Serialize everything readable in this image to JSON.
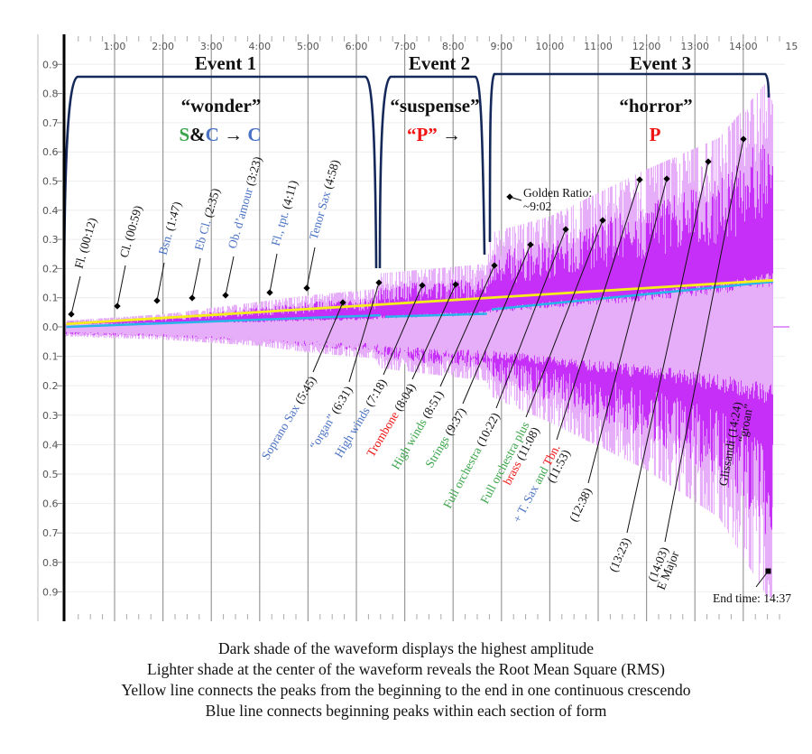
{
  "chart_data": {
    "type": "area",
    "title": "",
    "xlabel": "",
    "ylabel": "",
    "xlim_minutes": [
      0,
      15
    ],
    "ylim": [
      -0.95,
      0.95
    ],
    "x_tick_labels": [
      "1:00",
      "2:00",
      "3:00",
      "4:00",
      "5:00",
      "6:00",
      "7:00",
      "8:00",
      "9:00",
      "10:00",
      "11:00",
      "12:00",
      "13:00",
      "14:00",
      "15"
    ],
    "y_tick_labels_upper": [
      "0.9",
      "0.8",
      "0.7",
      "0.6",
      "0.5",
      "0.4",
      "0.3",
      "0.2",
      "0.1",
      "0.0"
    ],
    "y_tick_labels_lower": [
      "0.1",
      "0.2",
      "0.3",
      "0.4",
      "0.5",
      "0.6",
      "0.7",
      "0.8",
      "0.9"
    ],
    "grid": true,
    "colors": {
      "peak": "#c62ff7",
      "rms": "#e6aef9",
      "yellow_line": "#f5ee1a",
      "blue_line": "#27b4e8",
      "bracket": "#14285a",
      "blue_text": "#4a72c4",
      "green_text": "#3aa54a",
      "red_text": "#f01414"
    },
    "envelope_minutes": [
      0,
      2,
      4,
      5,
      6.4,
      6.5,
      8.7,
      8.8,
      10,
      12,
      13.5,
      14.5,
      14.62
    ],
    "peak_positive": [
      0.02,
      0.04,
      0.08,
      0.1,
      0.12,
      0.17,
      0.2,
      0.3,
      0.35,
      0.5,
      0.6,
      0.78,
      0.7
    ],
    "peak_negative": [
      0.03,
      0.04,
      0.06,
      0.08,
      0.1,
      0.13,
      0.17,
      0.22,
      0.3,
      0.45,
      0.6,
      0.85,
      0.85
    ],
    "rms_positive": [
      0.01,
      0.015,
      0.02,
      0.025,
      0.03,
      0.035,
      0.05,
      0.06,
      0.08,
      0.11,
      0.14,
      0.17,
      0.17
    ],
    "rms_negative": [
      0.02,
      0.03,
      0.05,
      0.06,
      0.07,
      0.08,
      0.1,
      0.1,
      0.12,
      0.16,
      0.2,
      0.24,
      0.24
    ],
    "yellow_line": {
      "from": [
        0,
        0.01
      ],
      "to": [
        14.62,
        0.16
      ]
    },
    "blue_line_segments": [
      {
        "from": [
          0,
          0.0
        ],
        "to": [
          6.5,
          0.04
        ]
      },
      {
        "from": [
          6.6,
          0.035
        ],
        "to": [
          8.7,
          0.045
        ]
      },
      {
        "from": [
          8.8,
          0.06
        ],
        "to": [
          14.62,
          0.155
        ]
      }
    ],
    "events": [
      {
        "title": "Event 1",
        "mood": "“wonder”",
        "form": [
          {
            "t": "S",
            "c": "green"
          },
          {
            "t": "&",
            "c": "black"
          },
          {
            "t": "C",
            "c": "blue"
          },
          {
            "t": " → ",
            "c": "black"
          },
          {
            "t": "C",
            "c": "blue"
          }
        ]
      },
      {
        "title": "Event 2",
        "mood": "“suspense”",
        "form": [
          {
            "t": "“P”",
            "c": "red"
          },
          {
            "t": " →",
            "c": "black"
          }
        ]
      },
      {
        "title": "Event 3",
        "mood": "“horror”",
        "form": [
          {
            "t": "P",
            "c": "red"
          }
        ]
      }
    ],
    "annotations_upper": [
      [
        {
          "t": "Fl. (00:12)",
          "c": "black"
        }
      ],
      [
        {
          "t": "Cl. (00:59)",
          "c": "black"
        }
      ],
      [
        {
          "t": "Bsn.",
          "c": "blue"
        },
        {
          "t": " (1:47)",
          "c": "black"
        }
      ],
      [
        {
          "t": "Eb Cl.",
          "c": "blue"
        },
        {
          "t": " (2:35)",
          "c": "black"
        }
      ],
      [
        {
          "t": "Ob. d’amour",
          "c": "blue"
        },
        {
          "t": " (3:23)",
          "c": "black"
        }
      ],
      [
        {
          "t": "Fl., tpt.",
          "c": "blue"
        },
        {
          "t": " (4:11)",
          "c": "black"
        }
      ],
      [
        {
          "t": "Tenor Sax",
          "c": "blue"
        },
        {
          "t": " (4:58)",
          "c": "black"
        }
      ]
    ],
    "annotations_lower": [
      [
        [
          {
            "t": "Soprano Sax",
            "c": "blue"
          },
          {
            "t": " (5:45)",
            "c": "black"
          }
        ]
      ],
      [
        [
          {
            "t": "“organ”",
            "c": "blue"
          },
          {
            "t": " (6:31)",
            "c": "black"
          }
        ]
      ],
      [
        [
          {
            "t": "High winds",
            "c": "blue"
          },
          {
            "t": " (7:18)",
            "c": "black"
          }
        ]
      ],
      [
        [
          {
            "t": "Trombone",
            "c": "red"
          },
          {
            "t": " (8:04)",
            "c": "black"
          }
        ]
      ],
      [
        [
          {
            "t": "High winds",
            "c": "green"
          },
          {
            "t": " (8:51)",
            "c": "black"
          }
        ]
      ],
      [
        [
          {
            "t": "Strings",
            "c": "green"
          },
          {
            "t": "  (9:37)",
            "c": "black"
          }
        ]
      ],
      [
        [
          {
            "t": "Full orchestra",
            "c": "green"
          },
          {
            "t": " (10:22)",
            "c": "black"
          }
        ]
      ],
      [
        [
          {
            "t": "Full orchestra plus",
            "c": "green"
          }
        ],
        [
          {
            "t": "brass",
            "c": "red"
          },
          {
            "t": " (11:08)",
            "c": "black"
          }
        ]
      ],
      [
        [
          {
            "t": "+ T. Sax",
            "c": "blue"
          },
          {
            "t": " and ",
            "c": "green"
          },
          {
            "t": "Tbn.",
            "c": "red"
          }
        ],
        [
          {
            "t": "(11:53)",
            "c": "black"
          }
        ]
      ],
      [
        [
          {
            "t": "(12:38)",
            "c": "black"
          }
        ]
      ],
      [
        [
          {
            "t": "(13:23)",
            "c": "black"
          }
        ]
      ],
      [
        [
          {
            "t": "(14:03)",
            "c": "black"
          }
        ],
        [
          {
            "t": "E Major",
            "c": "black"
          }
        ]
      ],
      [
        [
          {
            "t": "Glissandi (14:24)",
            "c": "black"
          }
        ],
        [
          {
            "t": "“groan”",
            "c": "black"
          }
        ]
      ]
    ],
    "golden_ratio": [
      "Golden Ratio:",
      "~9:02"
    ],
    "end_time": "End time: 14:37"
  },
  "caption": [
    "Dark shade of the waveform displays the highest amplitude",
    "Lighter shade at the center of the waveform reveals the Root Mean Square (RMS)",
    "Yellow line connects the peaks from the beginning to the end in one continuous crescendo",
    "Blue line connects beginning peaks within each section of form"
  ]
}
